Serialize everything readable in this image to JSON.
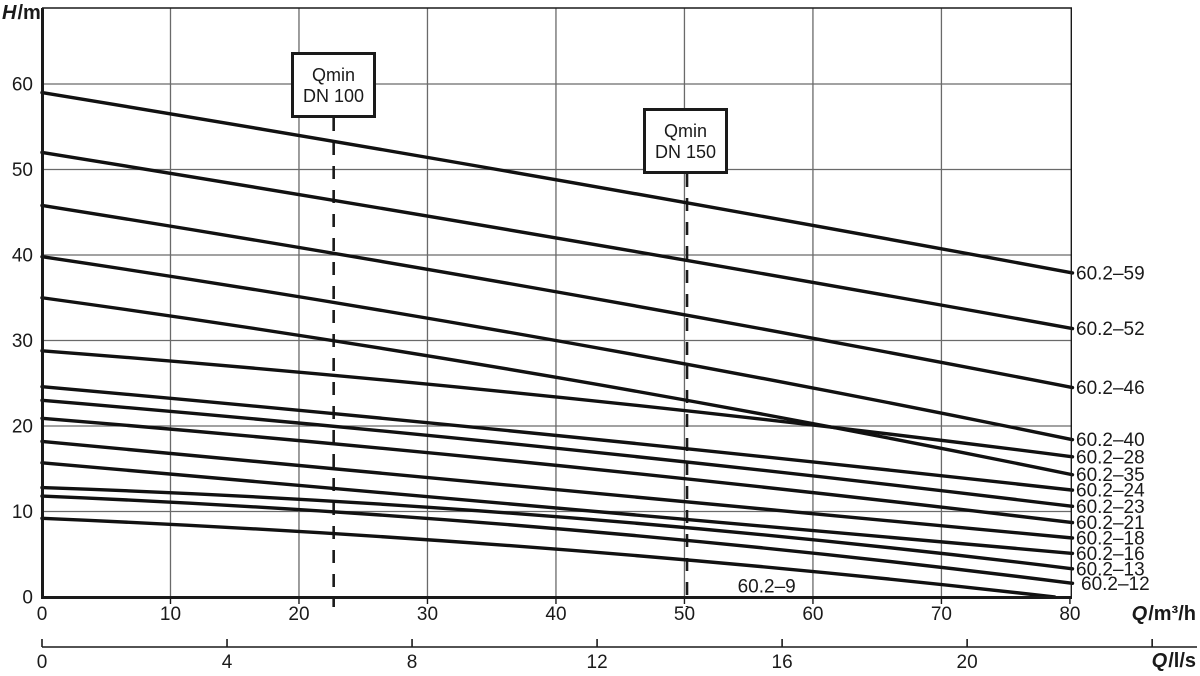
{
  "chart_data": {
    "type": "line",
    "title": "",
    "legend_position": "curve-end-labels-right",
    "grid": true,
    "y_axis": {
      "label_var": "H",
      "label_unit": "/m",
      "ticks": [
        0,
        10,
        20,
        30,
        40,
        50,
        60
      ],
      "range": [
        0,
        69
      ]
    },
    "x_axis_m3h": {
      "label_var": "Q",
      "label_unit": "/m³/h",
      "ticks": [
        0,
        10,
        20,
        30,
        40,
        50,
        60,
        70,
        80
      ],
      "range": [
        0,
        80.2
      ]
    },
    "x_axis_ls": {
      "label_var": "Q",
      "label_unit": "/l/s",
      "ticks": [
        0,
        4,
        8,
        12,
        16,
        20
      ],
      "end_tick": 24
    },
    "qmin_markers": [
      {
        "line1": "Qmin",
        "line2": "DN 100",
        "q_m3h": 22.7
      },
      {
        "line1": "Qmin",
        "line2": "DN 150",
        "q_m3h": 50.2
      }
    ],
    "series": [
      {
        "label": "60.2–59",
        "points_q_h": [
          [
            0,
            59.0
          ],
          [
            40,
            48.8
          ],
          [
            80.2,
            37.9
          ]
        ]
      },
      {
        "label": "60.2–52",
        "points_q_h": [
          [
            0,
            52.0
          ],
          [
            40,
            42.0
          ],
          [
            80.2,
            31.4
          ]
        ]
      },
      {
        "label": "60.2–46",
        "points_q_h": [
          [
            0,
            45.8
          ],
          [
            40,
            35.7
          ],
          [
            80.2,
            24.5
          ]
        ]
      },
      {
        "label": "60.2–40",
        "points_q_h": [
          [
            0,
            39.8
          ],
          [
            40,
            30.0
          ],
          [
            80.2,
            18.4
          ]
        ]
      },
      {
        "label": "60.2–35",
        "points_q_h": [
          [
            0,
            35.0
          ],
          [
            40,
            25.7
          ],
          [
            80.2,
            14.3
          ]
        ]
      },
      {
        "label": "60.2–28",
        "points_q_h": [
          [
            0,
            28.8
          ],
          [
            40,
            23.4
          ],
          [
            80.2,
            16.4
          ]
        ]
      },
      {
        "label": "60.2–24",
        "points_q_h": [
          [
            0,
            24.6
          ],
          [
            40,
            18.9
          ],
          [
            80.2,
            12.5
          ]
        ]
      },
      {
        "label": "60.2–23",
        "points_q_h": [
          [
            0,
            23.0
          ],
          [
            40,
            17.4
          ],
          [
            80.2,
            10.6
          ]
        ]
      },
      {
        "label": "60.2–21",
        "points_q_h": [
          [
            0,
            20.9
          ],
          [
            40,
            15.4
          ],
          [
            80.2,
            8.7
          ]
        ]
      },
      {
        "label": "60.2–18",
        "points_q_h": [
          [
            0,
            18.2
          ],
          [
            40,
            12.6
          ],
          [
            80.2,
            6.9
          ]
        ]
      },
      {
        "label": "60.2–16",
        "points_q_h": [
          [
            0,
            15.7
          ],
          [
            40,
            10.4
          ],
          [
            80.2,
            5.1
          ]
        ]
      },
      {
        "label": "60.2–13",
        "points_q_h": [
          [
            0,
            12.8
          ],
          [
            40,
            9.4
          ],
          [
            80.2,
            3.3
          ]
        ]
      },
      {
        "label": "60.2–12",
        "points_q_h": [
          [
            0,
            11.8
          ],
          [
            40,
            8.0
          ],
          [
            80.2,
            1.6
          ]
        ],
        "label_dx": 5
      },
      {
        "label": "60.2–9",
        "points_q_h": [
          [
            0,
            9.2
          ],
          [
            40,
            5.6
          ],
          [
            78.8,
            0.0
          ]
        ],
        "label_inline": true,
        "label_q": 56.4,
        "label_h": 1.3
      }
    ],
    "colors": {
      "curve": "#111111",
      "grid": "#6a6a6a",
      "frame": "#1a1a1a",
      "text": "#1a1a1a",
      "background": "#ffffff"
    }
  }
}
